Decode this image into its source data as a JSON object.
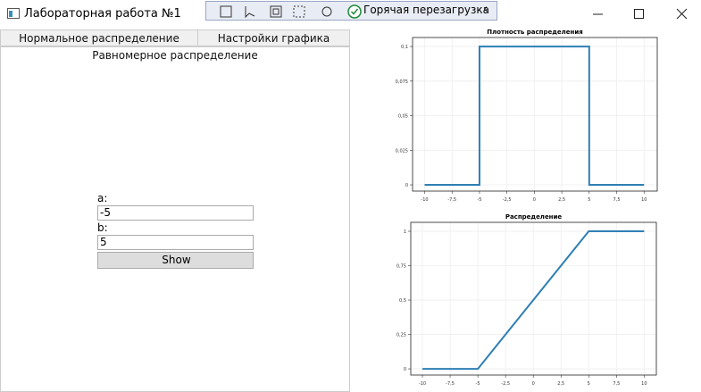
{
  "window": {
    "title": "Лабораторная работа №1",
    "hot_reload": "Горячая перезагрузка"
  },
  "tabs": [
    "Нормальное распределение",
    "Настройки графика",
    "Равномерное распределение"
  ],
  "form": {
    "a_label": "a:",
    "a_value": "-5",
    "b_label": "b:",
    "b_value": "5",
    "button": "Show"
  },
  "chart_data": [
    {
      "type": "line",
      "title": "Плотность распределения",
      "x": [
        -10,
        -5,
        -5,
        5,
        5,
        10
      ],
      "values": [
        0,
        0,
        0.1,
        0.1,
        0,
        0
      ],
      "color": "#2f7fb5",
      "xlim": [
        -11.1,
        11.2
      ],
      "ylim": [
        -0.0045,
        0.1065
      ],
      "xticks": [
        -10,
        {
          "value": -7.5,
          "label": "-7,5"
        },
        -5,
        {
          "value": -2.5,
          "label": "-2,5"
        },
        0,
        {
          "value": 2.5,
          "label": "2,5"
        },
        5,
        {
          "value": 7.5,
          "label": "7,5"
        },
        10
      ],
      "yticks": [
        0,
        {
          "value": 0.025,
          "label": "0,025"
        },
        {
          "value": 0.05,
          "label": "0,05"
        },
        {
          "value": 0.075,
          "label": "0,075"
        },
        {
          "value": 0.1,
          "label": "0,1"
        }
      ],
      "grid": true
    },
    {
      "type": "line",
      "title": "Распределение",
      "x": [
        -10,
        -5,
        5,
        10
      ],
      "values": [
        0,
        0,
        1,
        1
      ],
      "color": "#2f7fb5",
      "xlim": [
        -11.05,
        11.1
      ],
      "ylim": [
        -0.045,
        1.065
      ],
      "xticks": [
        -10,
        {
          "value": -7.5,
          "label": "-7,5"
        },
        -5,
        {
          "value": -2.5,
          "label": "-2,5"
        },
        0,
        {
          "value": 2.5,
          "label": "2,5"
        },
        5,
        {
          "value": 7.5,
          "label": "7,5"
        },
        10
      ],
      "yticks": [
        0,
        {
          "value": 0.25,
          "label": "0,25"
        },
        {
          "value": 0.5,
          "label": "0,5"
        },
        {
          "value": 0.75,
          "label": "0,75"
        },
        1
      ],
      "grid": true
    }
  ]
}
